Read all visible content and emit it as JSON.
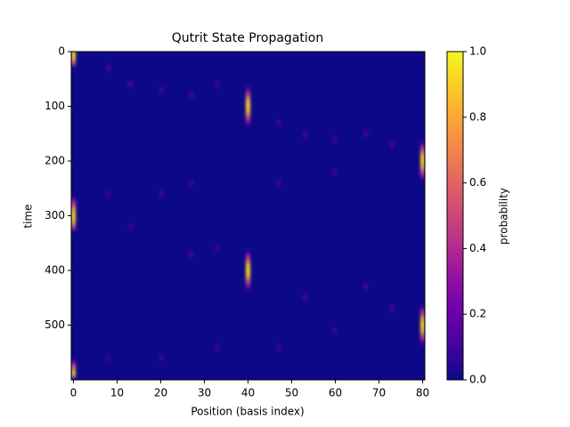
{
  "chart_data": {
    "type": "heatmap",
    "title": "Qutrit State Propagation",
    "x_label": "Position (basis index)",
    "y_label": "time",
    "xlim": [
      -0.5,
      80.5
    ],
    "xticks": [
      0,
      10,
      20,
      30,
      40,
      50,
      60,
      70,
      80
    ],
    "ylim": [
      600,
      0
    ],
    "yticks": [
      0,
      100,
      200,
      300,
      400,
      500
    ],
    "colormap": "plasma",
    "clim": [
      0,
      1
    ],
    "cticks": [
      {
        "value": 0,
        "label": "0.0"
      },
      0.2,
      0.4,
      0.6,
      0.8,
      {
        "value": 1,
        "label": "1.0"
      }
    ],
    "colorbar_label": "probability",
    "x": [
      0,
      0,
      0,
      40,
      40,
      40,
      40,
      40,
      40,
      40,
      80,
      80,
      80,
      80,
      80,
      80,
      80,
      0,
      0,
      0,
      0,
      0,
      0,
      40,
      40,
      40,
      40,
      40,
      40,
      40,
      80,
      80,
      80,
      80,
      80,
      80,
      80,
      0,
      0,
      0,
      8,
      13,
      20,
      27,
      33,
      47,
      53,
      60,
      67,
      73,
      60,
      47,
      27,
      20,
      8,
      13,
      27,
      33,
      53,
      67,
      73,
      60,
      47,
      33,
      20,
      8
    ],
    "y": [
      0,
      10,
      20,
      70,
      80,
      90,
      100,
      110,
      120,
      130,
      170,
      180,
      190,
      200,
      210,
      220,
      230,
      270,
      280,
      290,
      300,
      310,
      320,
      370,
      380,
      390,
      400,
      410,
      420,
      430,
      470,
      480,
      490,
      500,
      510,
      520,
      530,
      570,
      580,
      590,
      30,
      60,
      70,
      80,
      60,
      130,
      150,
      160,
      150,
      170,
      220,
      240,
      240,
      260,
      260,
      320,
      370,
      360,
      450,
      430,
      470,
      510,
      540,
      540,
      560,
      560
    ],
    "values": [
      0.85,
      0.95,
      0.6,
      0.2,
      0.5,
      0.85,
      0.95,
      0.85,
      0.5,
      0.2,
      0.2,
      0.5,
      0.85,
      0.95,
      0.85,
      0.5,
      0.2,
      0.2,
      0.5,
      0.85,
      0.95,
      0.85,
      0.5,
      0.2,
      0.5,
      0.85,
      0.95,
      0.85,
      0.5,
      0.2,
      0.2,
      0.5,
      0.85,
      0.95,
      0.85,
      0.5,
      0.2,
      0.3,
      0.7,
      0.9,
      0.15,
      0.15,
      0.12,
      0.15,
      0.12,
      0.15,
      0.15,
      0.12,
      0.15,
      0.15,
      0.12,
      0.12,
      0.12,
      0.12,
      0.12,
      0.12,
      0.15,
      0.12,
      0.15,
      0.15,
      0.15,
      0.12,
      0.12,
      0.12,
      0.12,
      0.12
    ]
  }
}
